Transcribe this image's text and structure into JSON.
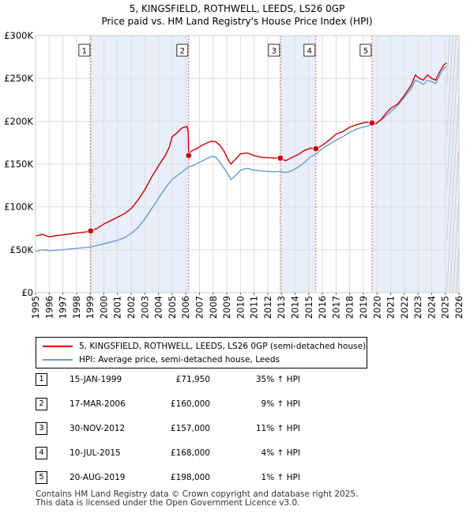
{
  "chart_data": {
    "type": "line",
    "title": "5, KINGSFIELD, ROTHWELL, LEEDS, LS26 0GP",
    "subtitle": "Price paid vs. HM Land Registry's House Price Index (HPI)",
    "xlim": [
      1995,
      2026
    ],
    "ylim": [
      0,
      300000
    ],
    "x_ticks": [
      1995,
      1996,
      1997,
      1998,
      1999,
      2000,
      2001,
      2002,
      2003,
      2004,
      2005,
      2006,
      2007,
      2008,
      2009,
      2010,
      2011,
      2012,
      2013,
      2014,
      2015,
      2016,
      2017,
      2018,
      2019,
      2020,
      2021,
      2022,
      2023,
      2024,
      2025,
      2026
    ],
    "y_ticks": [
      {
        "value": 0,
        "label": "£0"
      },
      {
        "value": 50000,
        "label": "£50K"
      },
      {
        "value": 100000,
        "label": "£100K"
      },
      {
        "value": 150000,
        "label": "£150K"
      },
      {
        "value": 200000,
        "label": "£200K"
      },
      {
        "value": 250000,
        "label": "£250K"
      },
      {
        "value": 300000,
        "label": "£300K"
      }
    ],
    "shaded_bands": [
      [
        1999.04,
        2006.21
      ],
      [
        2012.92,
        2015.52
      ],
      [
        2019.63,
        2026
      ]
    ],
    "data_end": 2025.1,
    "series": [
      {
        "name": "5, KINGSFIELD, ROTHWELL, LEEDS, LS26 0GP (semi-detached house)",
        "color": "#cc0000",
        "points": [
          [
            1995,
            66000
          ],
          [
            1995.5,
            68000
          ],
          [
            1996,
            65000
          ],
          [
            1996.5,
            66500
          ],
          [
            1997,
            67500
          ],
          [
            1997.5,
            68500
          ],
          [
            1998,
            69500
          ],
          [
            1998.6,
            70500
          ],
          [
            1999.04,
            71950
          ],
          [
            1999.5,
            75000
          ],
          [
            2000,
            80000
          ],
          [
            2000.5,
            84000
          ],
          [
            2001,
            88000
          ],
          [
            2001.5,
            92000
          ],
          [
            2002,
            98000
          ],
          [
            2002.5,
            108000
          ],
          [
            2003,
            120000
          ],
          [
            2003.5,
            135000
          ],
          [
            2004,
            148000
          ],
          [
            2004.5,
            160000
          ],
          [
            2004.8,
            170000
          ],
          [
            2005,
            182000
          ],
          [
            2005.4,
            187000
          ],
          [
            2005.7,
            192000
          ],
          [
            2006.1,
            194000
          ],
          [
            2006.18,
            186000
          ],
          [
            2006.21,
            160000
          ],
          [
            2006.4,
            165000
          ],
          [
            2006.8,
            168000
          ],
          [
            2007.2,
            172000
          ],
          [
            2007.6,
            175000
          ],
          [
            2007.9,
            177000
          ],
          [
            2008.2,
            176000
          ],
          [
            2008.5,
            172000
          ],
          [
            2008.8,
            165000
          ],
          [
            2009.1,
            155000
          ],
          [
            2009.3,
            150000
          ],
          [
            2009.6,
            155000
          ],
          [
            2010,
            162000
          ],
          [
            2010.5,
            163000
          ],
          [
            2011,
            160000
          ],
          [
            2011.5,
            158000
          ],
          [
            2012,
            157500
          ],
          [
            2012.5,
            157000
          ],
          [
            2012.92,
            157000
          ],
          [
            2013.3,
            154000
          ],
          [
            2013.7,
            157000
          ],
          [
            2014.2,
            161000
          ],
          [
            2014.7,
            166000
          ],
          [
            2015.1,
            168500
          ],
          [
            2015.52,
            168000
          ],
          [
            2016,
            172000
          ],
          [
            2016.5,
            178000
          ],
          [
            2017,
            185000
          ],
          [
            2017.5,
            188000
          ],
          [
            2018,
            193000
          ],
          [
            2018.5,
            196000
          ],
          [
            2019.2,
            199000
          ],
          [
            2019.63,
            198000
          ],
          [
            2019.9,
            197000
          ],
          [
            2020.3,
            202000
          ],
          [
            2020.7,
            210000
          ],
          [
            2021,
            215000
          ],
          [
            2021.5,
            220000
          ],
          [
            2022,
            230000
          ],
          [
            2022.5,
            242000
          ],
          [
            2022.8,
            254000
          ],
          [
            2023.1,
            250000
          ],
          [
            2023.4,
            248000
          ],
          [
            2023.7,
            254000
          ],
          [
            2024,
            250000
          ],
          [
            2024.3,
            248000
          ],
          [
            2024.6,
            258000
          ],
          [
            2024.9,
            266000
          ],
          [
            2025.1,
            268000
          ]
        ]
      },
      {
        "name": "HPI: Average price, semi-detached house, Leeds",
        "color": "#6b9bd2",
        "points": [
          [
            1995,
            48000
          ],
          [
            1995.5,
            50000
          ],
          [
            1996,
            49000
          ],
          [
            1996.5,
            49500
          ],
          [
            1997,
            50000
          ],
          [
            1997.5,
            51000
          ],
          [
            1998,
            51500
          ],
          [
            1998.6,
            52500
          ],
          [
            1999.04,
            53300
          ],
          [
            1999.5,
            55000
          ],
          [
            2000,
            57000
          ],
          [
            2000.5,
            59000
          ],
          [
            2001,
            61000
          ],
          [
            2001.5,
            64000
          ],
          [
            2002,
            69000
          ],
          [
            2002.5,
            76000
          ],
          [
            2003,
            86000
          ],
          [
            2003.5,
            98000
          ],
          [
            2004,
            110000
          ],
          [
            2004.5,
            122000
          ],
          [
            2005,
            132000
          ],
          [
            2005.5,
            138000
          ],
          [
            2006.21,
            146800
          ],
          [
            2006.5,
            148000
          ],
          [
            2007,
            152000
          ],
          [
            2007.5,
            156000
          ],
          [
            2007.9,
            159000
          ],
          [
            2008.2,
            158000
          ],
          [
            2008.5,
            152000
          ],
          [
            2008.8,
            145000
          ],
          [
            2009.1,
            138000
          ],
          [
            2009.3,
            132000
          ],
          [
            2009.6,
            136000
          ],
          [
            2010,
            143000
          ],
          [
            2010.5,
            145000
          ],
          [
            2011,
            143000
          ],
          [
            2011.5,
            142000
          ],
          [
            2012,
            141500
          ],
          [
            2012.5,
            141000
          ],
          [
            2012.92,
            141400
          ],
          [
            2013.3,
            140000
          ],
          [
            2013.7,
            142000
          ],
          [
            2014.2,
            146000
          ],
          [
            2014.7,
            152000
          ],
          [
            2015.1,
            158000
          ],
          [
            2015.52,
            161500
          ],
          [
            2016,
            168000
          ],
          [
            2016.5,
            173000
          ],
          [
            2017,
            178000
          ],
          [
            2017.5,
            182000
          ],
          [
            2018,
            187000
          ],
          [
            2018.5,
            191000
          ],
          [
            2019.2,
            194000
          ],
          [
            2019.63,
            196000
          ],
          [
            2020,
            198000
          ],
          [
            2020.5,
            204000
          ],
          [
            2021,
            211000
          ],
          [
            2021.5,
            218000
          ],
          [
            2022,
            228000
          ],
          [
            2022.5,
            238000
          ],
          [
            2022.8,
            248000
          ],
          [
            2023.1,
            246000
          ],
          [
            2023.4,
            243000
          ],
          [
            2023.7,
            248000
          ],
          [
            2024,
            246000
          ],
          [
            2024.3,
            244000
          ],
          [
            2024.6,
            254000
          ],
          [
            2024.9,
            262000
          ],
          [
            2025.1,
            264000
          ]
        ]
      }
    ],
    "sales": [
      {
        "num": "1",
        "x": 1999.04,
        "y": 71950,
        "date": "15-JAN-1999",
        "price": "£71,950",
        "hpi": "35% ↑ HPI"
      },
      {
        "num": "2",
        "x": 2006.21,
        "y": 160000,
        "date": "17-MAR-2006",
        "price": "£160,000",
        "hpi": "9% ↑ HPI"
      },
      {
        "num": "3",
        "x": 2012.92,
        "y": 157000,
        "date": "30-NOV-2012",
        "price": "£157,000",
        "hpi": "11% ↑ HPI"
      },
      {
        "num": "4",
        "x": 2015.52,
        "y": 168000,
        "date": "10-JUL-2015",
        "price": "£168,000",
        "hpi": "4% ↑ HPI"
      },
      {
        "num": "5",
        "x": 2019.63,
        "y": 198000,
        "date": "20-AUG-2019",
        "price": "£198,000",
        "hpi": "1% ↑ HPI"
      }
    ]
  },
  "legend": {
    "property_label": "5, KINGSFIELD, ROTHWELL, LEEDS, LS26 0GP (semi-detached house)",
    "hpi_label": "HPI: Average price, semi-detached house, Leeds"
  },
  "footer": {
    "line1": "Contains HM Land Registry data © Crown copyright and database right 2025.",
    "line2": "This data is licensed under the Open Government Licence v3.0."
  }
}
